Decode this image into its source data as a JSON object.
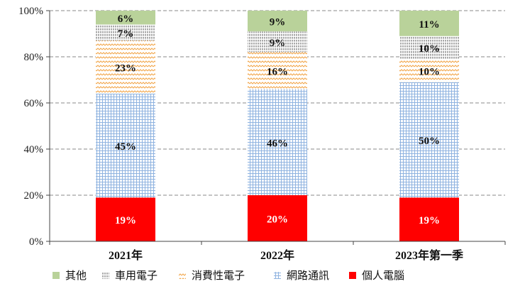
{
  "chart_data": {
    "type": "bar",
    "stacked": true,
    "categories": [
      "2021年",
      "2022年",
      "2023年第一季"
    ],
    "series": [
      {
        "name": "個人電腦",
        "values": [
          19,
          20,
          19
        ],
        "labels": [
          "19%",
          "20%",
          "19%"
        ],
        "color": "#ff0000",
        "pattern": "solid"
      },
      {
        "name": "網路通訊",
        "values": [
          45,
          46,
          50
        ],
        "labels": [
          "45%",
          "46%",
          "50%"
        ],
        "color": "#8fb3e0",
        "pattern": "grid"
      },
      {
        "name": "消費性電子",
        "values": [
          23,
          16,
          10
        ],
        "labels": [
          "23%",
          "16%",
          "10%"
        ],
        "color": "#f2a64a",
        "pattern": "zigzag"
      },
      {
        "name": "車用電子",
        "values": [
          7,
          9,
          10
        ],
        "labels": [
          "7%",
          "9%",
          "10%"
        ],
        "color": "#555555",
        "pattern": "vertical-hatch"
      },
      {
        "name": "其他",
        "values": [
          6,
          9,
          11
        ],
        "labels": [
          "6%",
          "9%",
          "11%"
        ],
        "color": "#b9d29a",
        "pattern": "solid"
      }
    ],
    "yticks": [
      "0%",
      "20%",
      "40%",
      "60%",
      "80%",
      "100%"
    ],
    "ylim": [
      0,
      100
    ],
    "grid": true,
    "legend_position": "bottom"
  }
}
